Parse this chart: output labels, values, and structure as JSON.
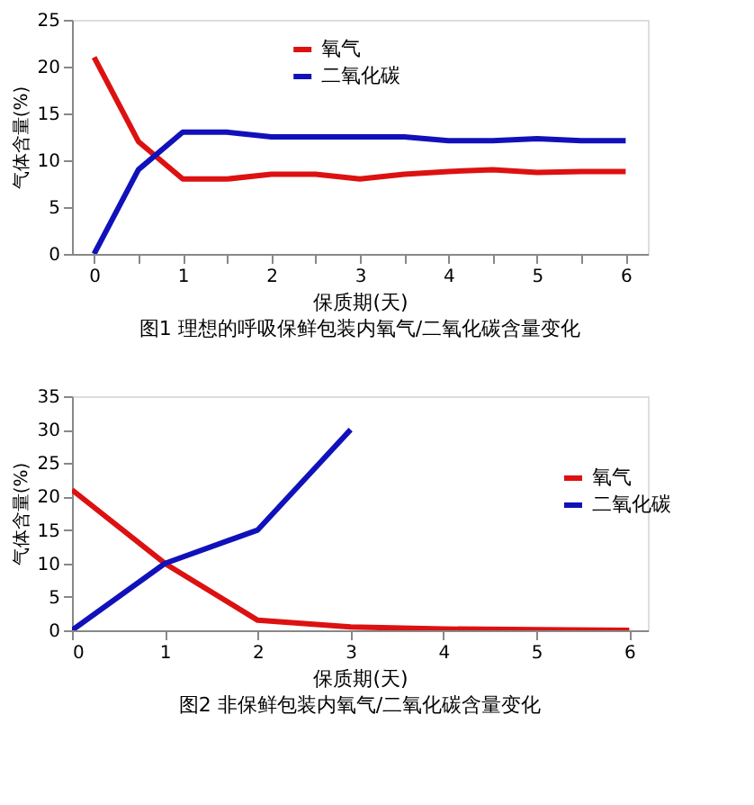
{
  "chart_data": [
    {
      "type": "line",
      "xlabel": "保质期(天)",
      "ylabel": "气体含量(%)",
      "annotations": [
        "图1 理想的呼吸保鲜包装内氧气/二氧化碳含量变化"
      ],
      "xlim": [
        -0.25,
        6.25
      ],
      "ylim": [
        0,
        25
      ],
      "xticks": [
        0,
        {
          "value": 0.5,
          "label": null
        },
        1,
        {
          "value": 1.5,
          "label": null
        },
        2,
        {
          "value": 2.5,
          "label": null
        },
        3,
        {
          "value": 3.5,
          "label": null
        },
        4,
        {
          "value": 4.5,
          "label": null
        },
        5,
        {
          "value": 5.5,
          "label": null
        },
        6
      ],
      "yticks": [
        0,
        5,
        10,
        15,
        20,
        25
      ],
      "grid": false,
      "legend": "top",
      "marker": "none",
      "line_style": "solid",
      "x": [
        0,
        0.5,
        1,
        1.5,
        2,
        2.5,
        3,
        3.5,
        4,
        4.5,
        5,
        5.5,
        6
      ],
      "series": [
        {
          "name": "氧气",
          "color": "#dd1111",
          "values": [
            21,
            12,
            8,
            8,
            8.5,
            8.5,
            8,
            8.5,
            8.8,
            9,
            8.7,
            8.8,
            8.8
          ]
        },
        {
          "name": "二氧化碳",
          "color": "#1111bb",
          "values": [
            0,
            9,
            13,
            13,
            12.5,
            12.5,
            12.5,
            12.5,
            12.1,
            12.1,
            12.3,
            12.1,
            12.1
          ]
        }
      ]
    },
    {
      "type": "line",
      "xlabel": "保质期(天)",
      "ylabel": "气体含量(%)",
      "annotations": [
        "图2 非保鲜包装内氧气/二氧化碳含量变化"
      ],
      "xlim": [
        0,
        6.2
      ],
      "ylim": [
        0,
        35
      ],
      "xticks": [
        0,
        1,
        2,
        3,
        4,
        5,
        6
      ],
      "yticks": [
        0,
        5,
        10,
        15,
        20,
        25,
        30,
        35
      ],
      "grid": false,
      "legend": "right",
      "marker": "none",
      "line_style": "solid",
      "series": [
        {
          "name": "氧气",
          "color": "#dd1111",
          "x": [
            0,
            1,
            2,
            3,
            4,
            5,
            6
          ],
          "values": [
            21,
            10,
            1.5,
            0.5,
            0.2,
            0.1,
            0
          ]
        },
        {
          "name": "二氧化碳",
          "color": "#1111bb",
          "x": [
            0,
            1,
            2,
            3
          ],
          "values": [
            0,
            10,
            15,
            30
          ]
        }
      ]
    }
  ]
}
